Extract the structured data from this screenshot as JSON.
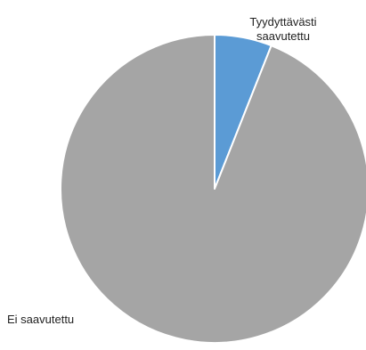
{
  "chart_data": {
    "type": "pie",
    "title": "",
    "start_angle_deg": 0,
    "direction": "clockwise",
    "slices": [
      {
        "label": "Tyydyttävästi saavutettu",
        "value": 6,
        "color": "#5b9bd5"
      },
      {
        "label": "Ei saavutettu",
        "value": 94,
        "color": "#a5a5a5"
      }
    ],
    "slice_border_color": "#ffffff",
    "legend": "none"
  }
}
